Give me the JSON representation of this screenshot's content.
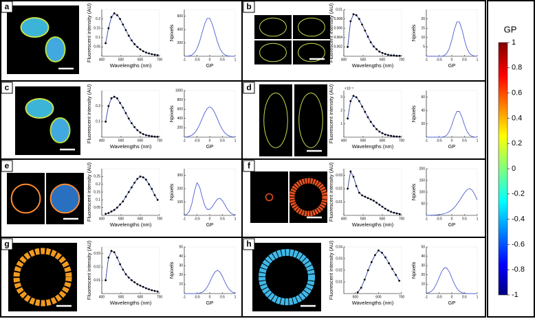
{
  "panels": [
    {
      "label": "a"
    },
    {
      "label": "b"
    },
    {
      "label": "c"
    },
    {
      "label": "d"
    },
    {
      "label": "e"
    },
    {
      "label": "f"
    },
    {
      "label": "g"
    },
    {
      "label": "h"
    }
  ],
  "colorbar": {
    "title": "GP",
    "ticks": [
      1,
      0.8,
      0.6,
      0.4,
      0.2,
      0,
      -0.2,
      -0.4,
      -0.6,
      -0.8,
      -1
    ],
    "lim": [
      -1,
      1
    ]
  },
  "chart_data": [
    {
      "type": "line",
      "xlabel": "Wavelengths (nm)",
      "ylabel": "Fluorescent intensity (AU)",
      "x": [
        420,
        435,
        450,
        465,
        480,
        495,
        510,
        525,
        540,
        555,
        570,
        585,
        600,
        615,
        630,
        645,
        660,
        675,
        690
      ],
      "xlim": [
        400,
        700
      ],
      "xticks": [
        400,
        500,
        600,
        700
      ],
      "ylim": [
        0,
        0.25
      ],
      "yticks": [
        0.05,
        0.1,
        0.15,
        0.2
      ],
      "series": [
        {
          "color": "#2b3d9f",
          "marker_color": "#000000",
          "values": [
            0.07,
            0.15,
            0.21,
            0.23,
            0.22,
            0.2,
            0.17,
            0.14,
            0.11,
            0.085,
            0.065,
            0.05,
            0.037,
            0.027,
            0.02,
            0.015,
            0.011,
            0.008,
            0.006
          ]
        }
      ]
    },
    {
      "type": "line",
      "xlabel": "GP",
      "ylabel": "Npixels",
      "x": [
        -1,
        -0.9,
        -0.8,
        -0.7,
        -0.6,
        -0.5,
        -0.4,
        -0.3,
        -0.2,
        -0.1,
        0,
        0.1,
        0.2,
        0.3,
        0.4,
        0.5,
        0.6,
        0.7,
        0.8,
        0.9,
        1
      ],
      "xlim": [
        -1,
        1
      ],
      "xticks": [
        -1,
        -0.5,
        0,
        0.5,
        1
      ],
      "ylim": [
        0,
        700
      ],
      "yticks": [
        200,
        400,
        600
      ],
      "series": [
        {
          "color": "#4a5ccf",
          "values": [
            0,
            2,
            6,
            20,
            52,
            115,
            218,
            352,
            484,
            568,
            568,
            484,
            352,
            218,
            115,
            52,
            20,
            6,
            2,
            0,
            0
          ]
        }
      ]
    },
    {
      "type": "line",
      "xlabel": "Wavelengths (nm)",
      "ylabel": "Fluorescent intensity (AU)",
      "x": [
        420,
        435,
        450,
        465,
        480,
        495,
        510,
        525,
        540,
        555,
        570,
        585,
        600,
        615,
        630,
        645,
        660,
        675,
        690
      ],
      "xlim": [
        400,
        700
      ],
      "xticks": [
        400,
        500,
        600,
        700
      ],
      "ylim": [
        0,
        0.01
      ],
      "yticks": [
        0.002,
        0.004,
        0.006,
        0.008,
        0.01
      ],
      "series": [
        {
          "color": "#2b3d9f",
          "marker_color": "#000000",
          "values": [
            0.002,
            0.0075,
            0.009,
            0.0088,
            0.008,
            0.0068,
            0.0055,
            0.0042,
            0.003,
            0.0021,
            0.0015,
            0.001,
            0.0007,
            0.0005,
            0.0003,
            0.0002,
            0.0002,
            0.0001,
            0.0001
          ]
        }
      ]
    },
    {
      "type": "line",
      "xlabel": "GP",
      "ylabel": "Npixels",
      "x": [
        -1,
        -0.9,
        -0.8,
        -0.7,
        -0.6,
        -0.5,
        -0.4,
        -0.3,
        -0.2,
        -0.1,
        0,
        0.1,
        0.2,
        0.3,
        0.4,
        0.5,
        0.6,
        0.7,
        0.8,
        0.9,
        1
      ],
      "xlim": [
        -1,
        1
      ],
      "xticks": [
        -1,
        -0.5,
        0,
        0.5,
        1
      ],
      "ylim": [
        0,
        25
      ],
      "yticks": [
        5,
        10,
        15,
        20
      ],
      "series": [
        {
          "color": "#4a5ccf",
          "values": [
            0,
            0,
            0,
            0,
            0,
            0,
            0,
            0.4,
            1.5,
            4.1,
            8.7,
            14.3,
            18.4,
            18.4,
            14.3,
            8.7,
            4.1,
            1.5,
            0.5,
            0.1,
            0
          ]
        }
      ]
    },
    {
      "type": "line",
      "xlabel": "Wavelengths (nm)",
      "ylabel": "Fluorescent intensity (AU)",
      "x": [
        420,
        435,
        450,
        465,
        480,
        495,
        510,
        525,
        540,
        555,
        570,
        585,
        600,
        615,
        630,
        645,
        660,
        675,
        690
      ],
      "xlim": [
        400,
        700
      ],
      "xticks": [
        400,
        500,
        600,
        700
      ],
      "ylim": [
        0,
        0.3
      ],
      "yticks": [
        0.1,
        0.2
      ],
      "series": [
        {
          "color": "#2b3d9f",
          "marker_color": "#000000",
          "values": [
            0.1,
            0.2,
            0.25,
            0.26,
            0.25,
            0.22,
            0.19,
            0.155,
            0.12,
            0.09,
            0.065,
            0.045,
            0.03,
            0.02,
            0.013,
            0.009,
            0.006,
            0.004,
            0.003
          ]
        }
      ]
    },
    {
      "type": "line",
      "xlabel": "GP",
      "ylabel": "Npixels",
      "x": [
        -1,
        -0.9,
        -0.8,
        -0.7,
        -0.6,
        -0.5,
        -0.4,
        -0.3,
        -0.2,
        -0.1,
        0,
        0.1,
        0.2,
        0.3,
        0.4,
        0.5,
        0.6,
        0.7,
        0.8,
        0.9,
        1
      ],
      "xlim": [
        -1,
        1
      ],
      "xticks": [
        -1,
        -0.5,
        0,
        0.5,
        1
      ],
      "ylim": [
        0,
        1000
      ],
      "yticks": [
        200,
        400,
        600,
        800,
        1000
      ],
      "series": [
        {
          "color": "#4a5ccf",
          "values": [
            3,
            7,
            19,
            43,
            88,
            162,
            268,
            396,
            520,
            615,
            650,
            615,
            520,
            396,
            268,
            162,
            88,
            43,
            19,
            7,
            3
          ]
        }
      ]
    },
    {
      "type": "line",
      "xlabel": "Wavelengths (nm)",
      "ylabel": "Fluorescent intensity (AU)",
      "yscale_label": "×10⁻³",
      "x": [
        420,
        435,
        450,
        465,
        480,
        495,
        510,
        525,
        540,
        555,
        570,
        585,
        600,
        615,
        630,
        645,
        660,
        675,
        690
      ],
      "xlim": [
        400,
        700
      ],
      "xticks": [
        400,
        500,
        600,
        700
      ],
      "ylim": [
        0,
        3.5
      ],
      "yticks": [
        1,
        2,
        3
      ],
      "series": [
        {
          "color": "#2b3d9f",
          "marker_color": "#000000",
          "values": [
            1.4,
            2.7,
            3.1,
            3.0,
            2.7,
            2.3,
            1.9,
            1.5,
            1.15,
            0.85,
            0.6,
            0.42,
            0.3,
            0.2,
            0.14,
            0.1,
            0.07,
            0.05,
            0.04
          ]
        }
      ]
    },
    {
      "type": "line",
      "xlabel": "GP",
      "ylabel": "Npixels",
      "x": [
        -1,
        -0.9,
        -0.8,
        -0.7,
        -0.6,
        -0.5,
        -0.4,
        -0.3,
        -0.2,
        -0.1,
        0,
        0.1,
        0.2,
        0.3,
        0.4,
        0.5,
        0.6,
        0.7,
        0.8,
        0.9,
        1
      ],
      "xlim": [
        -1,
        1
      ],
      "xticks": [
        -1,
        -0.5,
        0,
        0.5,
        1
      ],
      "ylim": [
        0,
        70
      ],
      "yticks": [
        20,
        40,
        60
      ],
      "series": [
        {
          "color": "#4a5ccf",
          "values": [
            0,
            0,
            0,
            0,
            0,
            0,
            0,
            0.8,
            3,
            8.6,
            18,
            30,
            38.6,
            38.6,
            30,
            18,
            8.6,
            3,
            1,
            0.2,
            0
          ]
        }
      ]
    },
    {
      "type": "line",
      "xlabel": "Wavelengths (nm)",
      "ylabel": "Fluorescent intensity (AU)",
      "x": [
        420,
        435,
        450,
        465,
        480,
        495,
        510,
        525,
        540,
        555,
        570,
        585,
        600,
        615,
        630,
        645,
        660,
        675,
        690
      ],
      "xlim": [
        400,
        700
      ],
      "xticks": [
        400,
        500,
        600,
        700
      ],
      "ylim": [
        0,
        0.3
      ],
      "yticks": [
        0.05,
        0.1,
        0.15,
        0.2,
        0.25
      ],
      "series": [
        {
          "color": "#2b3d9f",
          "marker_color": "#000000",
          "values": [
            0.01,
            0.015,
            0.025,
            0.035,
            0.05,
            0.07,
            0.09,
            0.12,
            0.15,
            0.18,
            0.21,
            0.235,
            0.25,
            0.245,
            0.23,
            0.2,
            0.17,
            0.13,
            0.1
          ]
        }
      ]
    },
    {
      "type": "line",
      "xlabel": "GP",
      "ylabel": "Npixels",
      "x": [
        -1,
        -0.9,
        -0.8,
        -0.7,
        -0.6,
        -0.5,
        -0.4,
        -0.3,
        -0.2,
        -0.1,
        0,
        0.1,
        0.2,
        0.3,
        0.4,
        0.5,
        0.6,
        0.7,
        0.8,
        0.9,
        1
      ],
      "xlim": [
        -1,
        1
      ],
      "xticks": [
        -1,
        -0.5,
        0,
        0.5,
        1
      ],
      "ylim": [
        0,
        350
      ],
      "yticks": [
        100,
        200,
        300
      ],
      "series": [
        {
          "color": "#4a5ccf",
          "values": [
            2,
            8,
            30,
            90,
            180,
            245,
            215,
            140,
            75,
            45,
            45,
            65,
            95,
            122,
            128,
            110,
            78,
            45,
            22,
            9,
            3
          ]
        }
      ]
    },
    {
      "type": "line",
      "xlabel": "Wavelengths (nm)",
      "ylabel": "Fluorescent intensity (AU)",
      "x": [
        420,
        435,
        450,
        465,
        480,
        495,
        510,
        525,
        540,
        555,
        570,
        585,
        600,
        615,
        630,
        645,
        660,
        675,
        690
      ],
      "xlim": [
        400,
        700
      ],
      "xticks": [
        400,
        500,
        600,
        700
      ],
      "ylim": [
        0,
        0.035
      ],
      "yticks": [
        0.01,
        0.02,
        0.03
      ],
      "series": [
        {
          "color": "#2b3d9f",
          "marker_color": "#000000",
          "values": [
            0.02,
            0.033,
            0.029,
            0.022,
            0.017,
            0.015,
            0.014,
            0.013,
            0.012,
            0.011,
            0.0095,
            0.008,
            0.0065,
            0.005,
            0.0037,
            0.0027,
            0.002,
            0.0015,
            0.001
          ]
        }
      ]
    },
    {
      "type": "line",
      "xlabel": "GP",
      "ylabel": "Npixels",
      "x": [
        -1,
        -0.9,
        -0.8,
        -0.7,
        -0.6,
        -0.5,
        -0.4,
        -0.3,
        -0.2,
        -0.1,
        0,
        0.1,
        0.2,
        0.3,
        0.4,
        0.5,
        0.6,
        0.7,
        0.8,
        0.9,
        1
      ],
      "xlim": [
        -1,
        1
      ],
      "xticks": [
        -1,
        -0.5,
        0,
        0.5,
        1
      ],
      "ylim": [
        0,
        200
      ],
      "yticks": [
        50,
        100,
        150,
        200
      ],
      "series": [
        {
          "color": "#4a5ccf",
          "values": [
            0,
            0,
            1,
            1,
            2,
            3,
            5,
            7,
            11,
            16,
            24,
            34,
            47,
            63,
            80,
            97,
            110,
            115,
            108,
            90,
            66
          ]
        }
      ]
    },
    {
      "type": "line",
      "xlabel": "Wavelengths (nm)",
      "ylabel": "Fluorescent intensity (AU)",
      "x": [
        420,
        435,
        450,
        465,
        480,
        495,
        510,
        525,
        540,
        555,
        570,
        585,
        600,
        615,
        630,
        645,
        660,
        675,
        690
      ],
      "xlim": [
        400,
        700
      ],
      "xticks": [
        400,
        500,
        600,
        700
      ],
      "ylim": [
        0,
        0.035
      ],
      "yticks": [
        0.01,
        0.02,
        0.03
      ],
      "series": [
        {
          "color": "#2b3d9f",
          "marker_color": "#000000",
          "values": [
            0.01,
            0.027,
            0.032,
            0.031,
            0.027,
            0.022,
            0.018,
            0.0145,
            0.012,
            0.01,
            0.0085,
            0.007,
            0.006,
            0.005,
            0.004,
            0.0032,
            0.0025,
            0.002,
            0.0015
          ]
        }
      ]
    },
    {
      "type": "line",
      "xlabel": "GP",
      "ylabel": "Npixels",
      "x": [
        -1,
        -0.9,
        -0.8,
        -0.7,
        -0.6,
        -0.5,
        -0.4,
        -0.3,
        -0.2,
        -0.1,
        0,
        0.1,
        0.2,
        0.3,
        0.4,
        0.5,
        0.6,
        0.7,
        0.8,
        0.9,
        1
      ],
      "xlim": [
        -1,
        1
      ],
      "xticks": [
        -1,
        -0.5,
        0,
        0.5,
        1
      ],
      "ylim": [
        0,
        50
      ],
      "yticks": [
        10,
        20,
        30,
        40,
        50
      ],
      "series": [
        {
          "color": "#4a5ccf",
          "values": [
            0,
            0,
            0,
            0,
            0,
            0,
            0.5,
            1.4,
            3.4,
            7,
            12.2,
            18.2,
            23,
            25,
            23,
            18.2,
            12.2,
            7,
            3.4,
            1.4,
            0.5
          ]
        }
      ]
    },
    {
      "type": "line",
      "xlabel": "Wavelengths (nm)",
      "ylabel": "Fluorescent intensity (AU)",
      "x": [
        510,
        525,
        540,
        555,
        570,
        585,
        600,
        615,
        630,
        645,
        660,
        675,
        690
      ],
      "xlim": [
        450,
        700
      ],
      "xticks": [
        500,
        600,
        700
      ],
      "ylim": [
        0,
        0.04
      ],
      "yticks": [
        0.01,
        0.02,
        0.03,
        0.04
      ],
      "series": [
        {
          "color": "#2b3d9f",
          "marker_color": "#000000",
          "values": [
            0.001,
            0.005,
            0.012,
            0.02,
            0.027,
            0.033,
            0.037,
            0.035,
            0.031,
            0.026,
            0.021,
            0.016,
            0.011
          ]
        }
      ]
    },
    {
      "type": "line",
      "xlabel": "GP",
      "ylabel": "Npixels",
      "x": [
        -1,
        -0.9,
        -0.8,
        -0.7,
        -0.6,
        -0.5,
        -0.4,
        -0.3,
        -0.2,
        -0.1,
        0,
        0.1,
        0.2,
        0.3,
        0.4,
        0.5,
        0.6,
        0.7,
        0.8,
        0.9,
        1
      ],
      "xlim": [
        -1,
        1
      ],
      "xticks": [
        -1,
        -0.5,
        0,
        0.5,
        1
      ],
      "ylim": [
        0,
        50
      ],
      "yticks": [
        10,
        20,
        30,
        40,
        50
      ],
      "series": [
        {
          "color": "#4a5ccf",
          "values": [
            0.3,
            0.95,
            2.5,
            5.5,
            10.5,
            17,
            23.4,
            27.4,
            27.4,
            23.4,
            17,
            10.5,
            5.5,
            2.5,
            0.95,
            0.3,
            0.1,
            0,
            0,
            0,
            0
          ]
        }
      ]
    }
  ]
}
